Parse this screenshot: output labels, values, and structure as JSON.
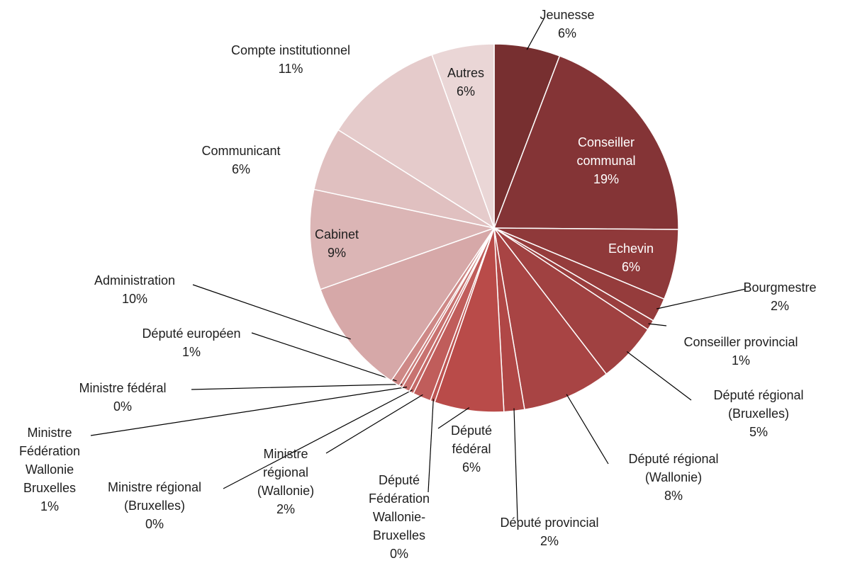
{
  "chart_data": {
    "type": "pie",
    "categories": [
      "Jeunesse",
      "Conseiller communal",
      "Echevin",
      "Bourgmestre",
      "Conseiller provincial",
      "Député régional (Bruxelles)",
      "Député régional (Wallonie)",
      "Député provincial",
      "Député fédéral",
      "Député Fédération Wallonie-Bruxelles",
      "Ministre régional (Wallonie)",
      "Ministre régional (Bruxelles)",
      "Ministre Fédération Wallonie Bruxelles",
      "Ministre fédéral",
      "Député européen",
      "Administration",
      "Cabinet",
      "Communicant",
      "Compte institutionnel",
      "Autres"
    ],
    "values": [
      5.8,
      19.4,
      6.2,
      2.1,
      0.9,
      5.3,
      7.8,
      1.8,
      6.1,
      0.4,
      1.6,
      0.4,
      0.7,
      0.3,
      0.8,
      10.2,
      8.8,
      5.6,
      10.6,
      5.5
    ],
    "value_labels": [
      "6%",
      "19%",
      "6%",
      "2%",
      "1%",
      "5%",
      "8%",
      "2%",
      "6%",
      "0%",
      "2%",
      "0%",
      "1%",
      "0%",
      "1%",
      "10%",
      "9%",
      "6%",
      "11%",
      "6%"
    ],
    "colors": [
      "#772f30",
      "#843436",
      "#8f393a",
      "#953c3c",
      "#9a3e3e",
      "#a04141",
      "#a84444",
      "#b04746",
      "#b94b49",
      "#bd5452",
      "#c05d5b",
      "#c46866",
      "#c87270",
      "#cb7d7b",
      "#ce8886",
      "#d6a8a8",
      "#dbb5b5",
      "#e0c0c0",
      "#e5cbcb",
      "#ead6d6"
    ]
  }
}
